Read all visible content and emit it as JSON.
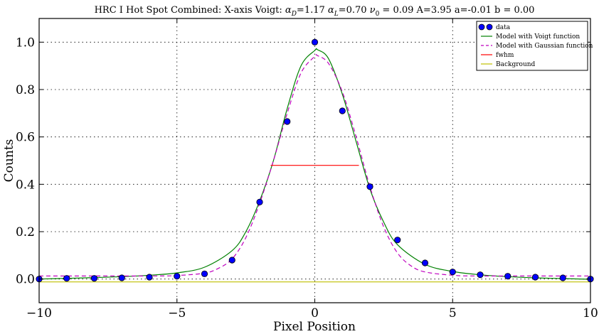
{
  "chart_data": {
    "type": "line",
    "title": "HRC I Hot Spot Combined: X-axis  Voigt: αD =1.17 αL =0.70 ν0 = 0.09 A=3.95  a=-0.01 b = 0.00",
    "title_parts": {
      "prefix": "HRC I Hot Spot Combined: X-axis  Voigt: ",
      "alpha": "α",
      "D": "D",
      "part2": "=1.17 ",
      "L": "L",
      "part3": "=0.70 ",
      "nu": "ν",
      "zero": "0",
      "part4": " = 0.09 A=3.95  a=-0.01 b = 0.00"
    },
    "xlabel": "Pixel Position",
    "ylabel": "Counts",
    "xlim": [
      -10,
      10
    ],
    "ylim": [
      -0.1,
      1.1
    ],
    "xticks": [
      -10,
      -5,
      0,
      5,
      10
    ],
    "xtick_labels": [
      "−10",
      "−5",
      "0",
      "5",
      "10"
    ],
    "yticks": [
      0.0,
      0.2,
      0.4,
      0.6,
      0.8,
      1.0
    ],
    "ytick_labels": [
      "0.0",
      "0.2",
      "0.4",
      "0.6",
      "0.8",
      "1.0"
    ],
    "grid": true,
    "legend_position": "top-right",
    "series": [
      {
        "name": "data",
        "kind": "scatter",
        "color": "#0000ff",
        "x": [
          -10,
          -9,
          -8,
          -7,
          -6,
          -5,
          -4,
          -3,
          -2,
          -1,
          0,
          1,
          2,
          3,
          4,
          5,
          6,
          7,
          8,
          9,
          10
        ],
        "y": [
          0.0,
          0.003,
          0.003,
          0.005,
          0.008,
          0.012,
          0.022,
          0.08,
          0.325,
          0.665,
          1.0,
          0.71,
          0.39,
          0.165,
          0.068,
          0.03,
          0.018,
          0.012,
          0.008,
          0.005,
          0.0
        ]
      },
      {
        "name": "Model with Voigt function",
        "kind": "line",
        "color": "#008000",
        "x": [
          -10,
          -9,
          -8,
          -7,
          -6,
          -5,
          -4,
          -3,
          -2.5,
          -2,
          -1.5,
          -1,
          -0.5,
          0,
          0.1,
          0.5,
          1,
          1.5,
          2,
          2.5,
          3,
          4,
          5,
          6,
          7,
          8,
          9,
          10
        ],
        "y": [
          0.0,
          0.003,
          0.006,
          0.01,
          0.016,
          0.026,
          0.05,
          0.12,
          0.2,
          0.33,
          0.5,
          0.72,
          0.9,
          0.965,
          0.968,
          0.93,
          0.78,
          0.58,
          0.38,
          0.24,
          0.145,
          0.062,
          0.032,
          0.018,
          0.01,
          0.005,
          0.002,
          -0.001
        ]
      },
      {
        "name": "Model with Gaussian function",
        "kind": "line",
        "dashed": true,
        "color": "#bf00bf",
        "x": [
          -10,
          -6,
          -5,
          -4,
          -3.5,
          -3,
          -2.5,
          -2,
          -1.5,
          -1,
          -0.5,
          0,
          0.1,
          0.5,
          1,
          1.5,
          2,
          2.5,
          3,
          3.5,
          4,
          5,
          6,
          10
        ],
        "y": [
          0.013,
          0.013,
          0.015,
          0.025,
          0.045,
          0.085,
          0.175,
          0.32,
          0.5,
          0.7,
          0.87,
          0.94,
          0.943,
          0.91,
          0.79,
          0.6,
          0.39,
          0.22,
          0.11,
          0.055,
          0.03,
          0.016,
          0.013,
          0.013
        ]
      },
      {
        "name": "fwhm",
        "kind": "line",
        "color": "#ff0000",
        "x": [
          -1.6,
          1.6
        ],
        "y": [
          0.48,
          0.48
        ]
      },
      {
        "name": "Background",
        "kind": "line",
        "color": "#bfbf00",
        "x": [
          -10,
          10
        ],
        "y": [
          -0.012,
          -0.012
        ]
      }
    ]
  }
}
